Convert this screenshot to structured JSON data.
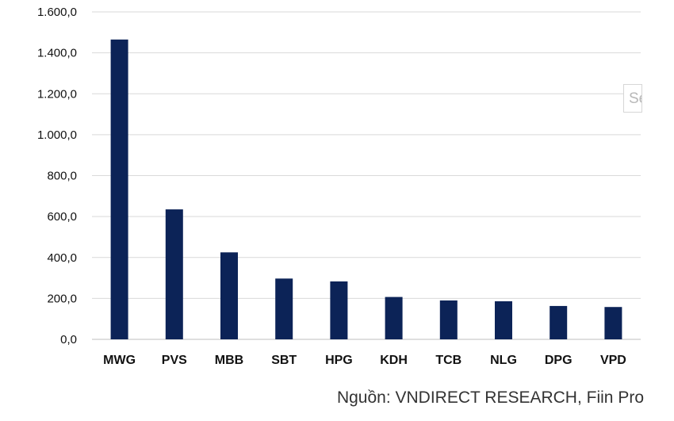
{
  "chart_data": {
    "type": "bar",
    "categories": [
      "MWG",
      "PVS",
      "MBB",
      "SBT",
      "HPG",
      "KDH",
      "TCB",
      "NLG",
      "DPG",
      "VPD"
    ],
    "values": [
      1465,
      635,
      425,
      297,
      283,
      207,
      190,
      186,
      163,
      158
    ],
    "ylim": [
      0,
      1600
    ],
    "yticks": [
      0,
      200,
      400,
      600,
      800,
      1000,
      1200,
      1400,
      1600
    ],
    "ytick_labels": [
      "0,0",
      "200,0",
      "400,0",
      "600,0",
      "800,0",
      "1.000,0",
      "1.200,0",
      "1.400,0",
      "1.600,0"
    ],
    "grid": true,
    "bar_color": "#0c2357",
    "grid_color": "#d9d9d9"
  },
  "source_note": "Nguồn: VNDIRECT RESEARCH, Fiin Pro",
  "overlay_fragment": "Se"
}
